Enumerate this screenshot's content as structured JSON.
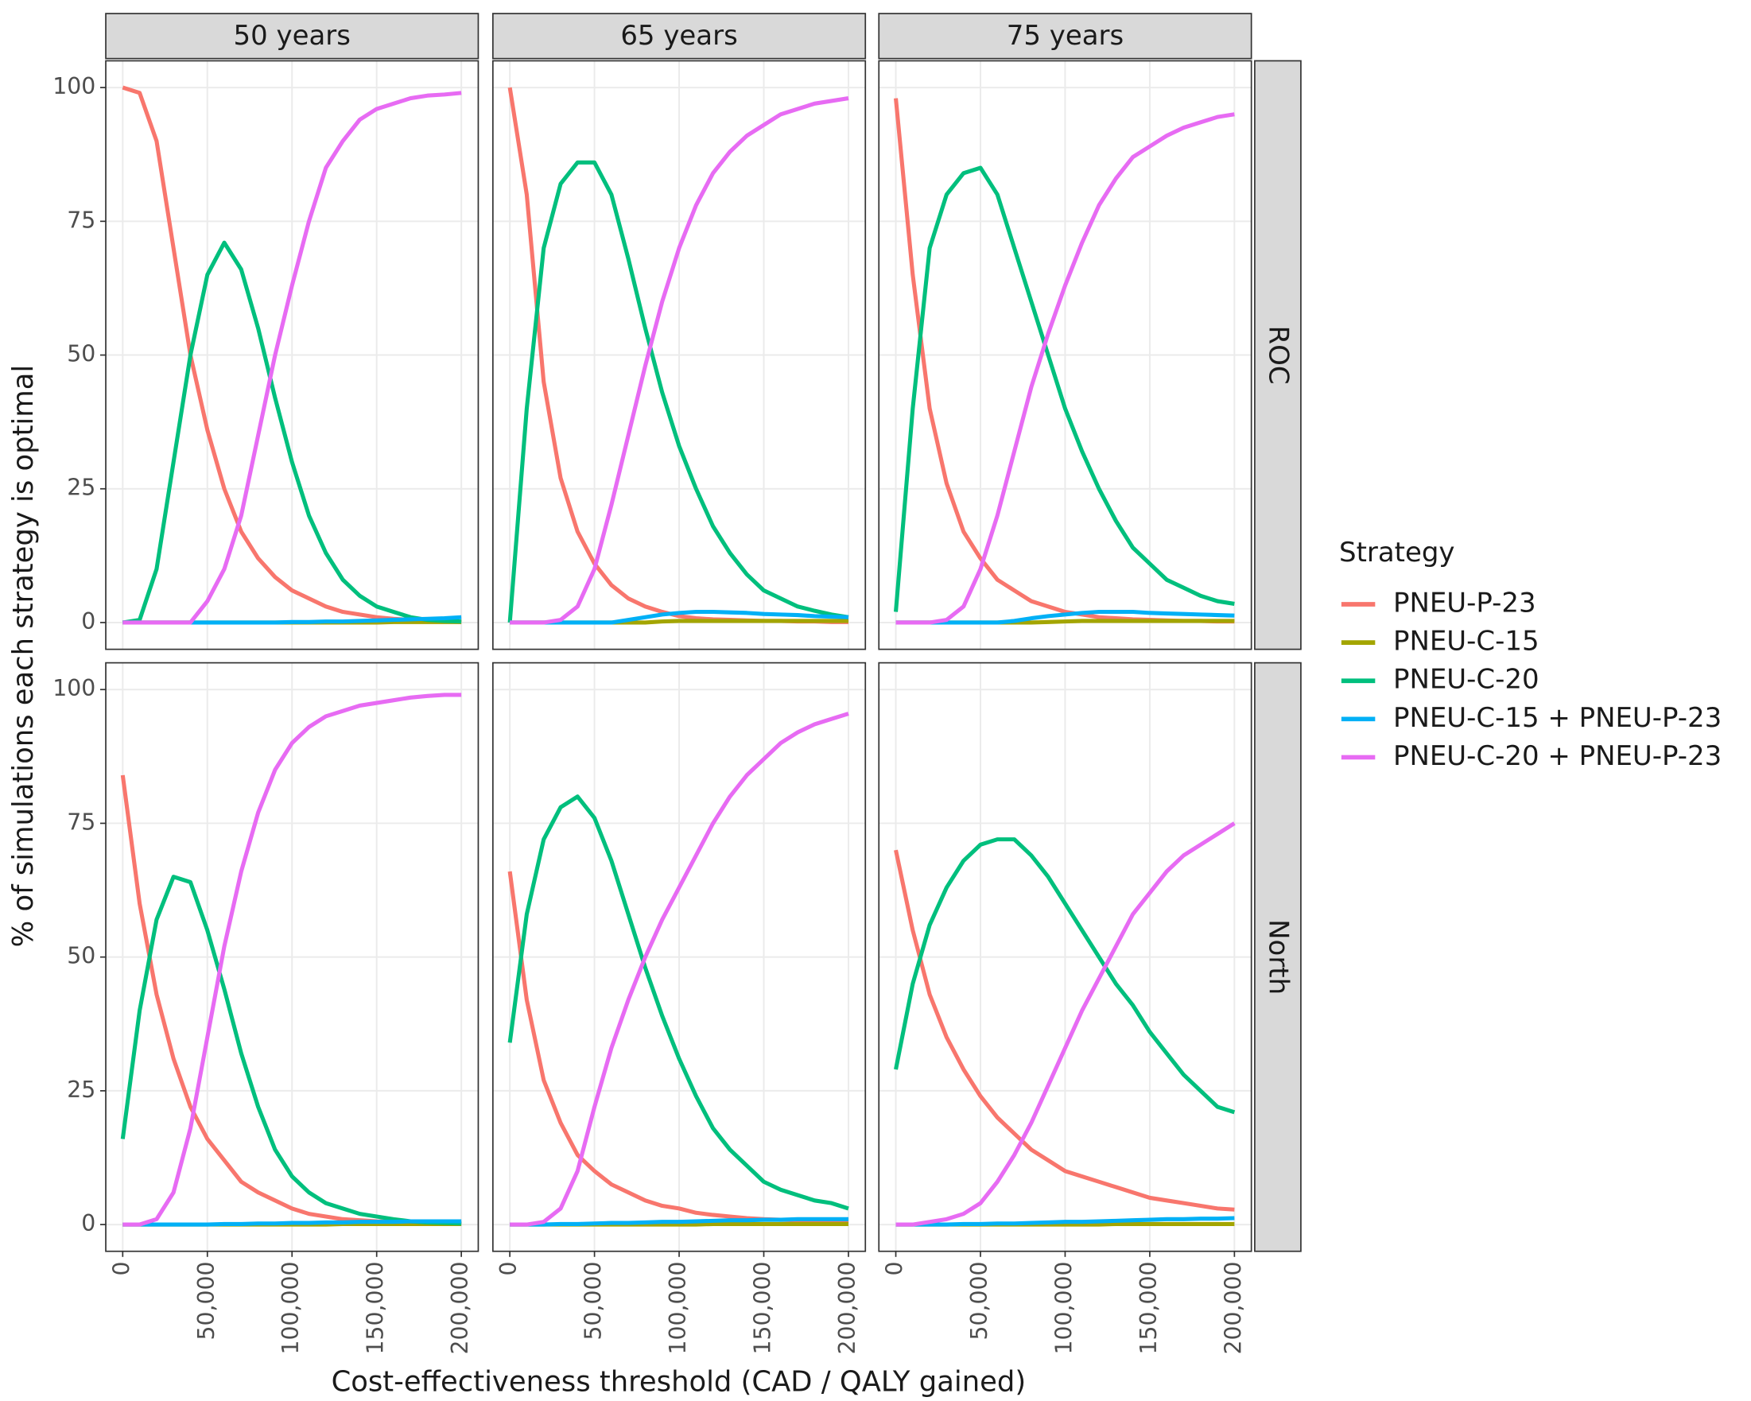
{
  "chart_data": {
    "type": "line",
    "x_label": "Cost-effectiveness threshold (CAD / QALY gained)",
    "y_label": "% of simulations each strategy is optimal",
    "legend_title": "Strategy",
    "columns": [
      "50 years",
      "65 years",
      "75 years"
    ],
    "rows": [
      "ROC",
      "North"
    ],
    "x": [
      0,
      10000,
      20000,
      30000,
      40000,
      50000,
      60000,
      70000,
      80000,
      90000,
      100000,
      110000,
      120000,
      130000,
      140000,
      150000,
      160000,
      170000,
      180000,
      190000,
      200000
    ],
    "xlim": [
      -10000,
      210000
    ],
    "xticks": [
      0,
      {
        "value": 50000,
        "label": "50,000"
      },
      {
        "value": 100000,
        "label": "100,000"
      },
      {
        "value": 150000,
        "label": "150,000"
      },
      {
        "value": 200000,
        "label": "200,000"
      }
    ],
    "ylim": [
      -5,
      105
    ],
    "yticks": [
      0,
      25,
      50,
      75,
      100
    ],
    "grid": true,
    "series": [
      {
        "name": "PNEU-P-23",
        "color": "#F8766D"
      },
      {
        "name": "PNEU-C-15",
        "color": "#A3A500"
      },
      {
        "name": "PNEU-C-20",
        "color": "#00BF7D"
      },
      {
        "name": "PNEU-C-15 + PNEU-P-23",
        "color": "#00B0F6"
      },
      {
        "name": "PNEU-C-20 + PNEU-P-23",
        "color": "#E76BF3"
      }
    ],
    "panels": [
      {
        "series": [
          {
            "values": [
              100,
              99,
              90,
              70,
              50,
              36,
              25,
              17,
              12,
              8.5,
              6,
              4.5,
              3,
              2,
              1.5,
              1,
              0.7,
              0.5,
              0.3,
              0.2,
              0.1
            ]
          },
          {
            "values": [
              0,
              0,
              0,
              0,
              0,
              0,
              0,
              0,
              0,
              0,
              0,
              0,
              0,
              0,
              0,
              0,
              0.1,
              0.1,
              0.1,
              0.1,
              0.1
            ]
          },
          {
            "values": [
              0,
              0.5,
              10,
              30,
              50,
              65,
              71,
              66,
              55,
              42,
              30,
              20,
              13,
              8,
              5,
              3,
              2,
              1,
              0.5,
              0.3,
              0.2
            ]
          },
          {
            "values": [
              0,
              0,
              0,
              0,
              0,
              0,
              0,
              0,
              0,
              0,
              0.1,
              0.1,
              0.2,
              0.2,
              0.3,
              0.4,
              0.5,
              0.6,
              0.7,
              0.8,
              1
            ]
          },
          {
            "values": [
              0,
              0,
              0,
              0,
              0,
              4,
              10,
              20,
              35,
              50,
              63,
              75,
              85,
              90,
              94,
              96,
              97,
              98,
              98.5,
              98.7,
              99
            ]
          }
        ]
      },
      {
        "series": [
          {
            "values": [
              100,
              80,
              45,
              27,
              17,
              11,
              7,
              4.5,
              3,
              2,
              1.2,
              0.8,
              0.6,
              0.5,
              0.4,
              0.3,
              0.3,
              0.2,
              0.2,
              0.1,
              0.1
            ]
          },
          {
            "values": [
              0,
              0,
              0,
              0,
              0,
              0,
              0,
              0,
              0,
              0.2,
              0.3,
              0.3,
              0.3,
              0.3,
              0.3,
              0.3,
              0.3,
              0.3,
              0.3,
              0.3,
              0.3
            ]
          },
          {
            "values": [
              0,
              40,
              70,
              82,
              86,
              86,
              80,
              68,
              55,
              43,
              33,
              25,
              18,
              13,
              9,
              6,
              4.5,
              3,
              2.2,
              1.5,
              1
            ]
          },
          {
            "values": [
              0,
              0,
              0,
              0,
              0,
              0,
              0,
              0.5,
              1,
              1.5,
              1.8,
              2,
              2,
              1.9,
              1.8,
              1.6,
              1.5,
              1.4,
              1.2,
              1.1,
              1
            ]
          },
          {
            "values": [
              0,
              0,
              0,
              0.5,
              3,
              10,
              22,
              35,
              48,
              60,
              70,
              78,
              84,
              88,
              91,
              93,
              95,
              96,
              97,
              97.5,
              98
            ]
          }
        ]
      },
      {
        "series": [
          {
            "values": [
              98,
              65,
              40,
              26,
              17,
              12,
              8,
              6,
              4,
              3,
              2,
              1.5,
              1,
              0.8,
              0.6,
              0.5,
              0.4,
              0.3,
              0.3,
              0.2,
              0.2
            ]
          },
          {
            "values": [
              0,
              0,
              0,
              0,
              0,
              0,
              0,
              0,
              0,
              0.1,
              0.2,
              0.3,
              0.3,
              0.3,
              0.3,
              0.3,
              0.3,
              0.3,
              0.3,
              0.3,
              0.3
            ]
          },
          {
            "values": [
              2,
              40,
              70,
              80,
              84,
              85,
              80,
              70,
              60,
              50,
              40,
              32,
              25,
              19,
              14,
              11,
              8,
              6.5,
              5,
              4,
              3.5
            ]
          },
          {
            "values": [
              0,
              0,
              0,
              0,
              0,
              0,
              0,
              0.3,
              0.8,
              1.2,
              1.5,
              1.8,
              2,
              2,
              2,
              1.8,
              1.7,
              1.6,
              1.5,
              1.4,
              1.3
            ]
          },
          {
            "values": [
              0,
              0,
              0,
              0.5,
              3,
              10,
              20,
              32,
              44,
              54,
              63,
              71,
              78,
              83,
              87,
              89,
              91,
              92.5,
              93.5,
              94.5,
              95
            ]
          }
        ]
      },
      {
        "series": [
          {
            "values": [
              84,
              60,
              43,
              31,
              22,
              16,
              12,
              8,
              6,
              4.5,
              3,
              2,
              1.5,
              1,
              0.8,
              0.6,
              0.5,
              0.4,
              0.3,
              0.2,
              0.2
            ]
          },
          {
            "values": [
              0,
              0,
              0,
              0,
              0,
              0,
              0,
              0,
              0,
              0,
              0,
              0,
              0,
              0.1,
              0.1,
              0.1,
              0.1,
              0.1,
              0.1,
              0.1,
              0.1
            ]
          },
          {
            "values": [
              16,
              40,
              57,
              65,
              64,
              55,
              44,
              32,
              22,
              14,
              9,
              6,
              4,
              3,
              2,
              1.5,
              1,
              0.6,
              0.4,
              0.3,
              0.2
            ]
          },
          {
            "values": [
              0,
              0,
              0,
              0,
              0,
              0,
              0.1,
              0.1,
              0.2,
              0.2,
              0.3,
              0.3,
              0.4,
              0.4,
              0.5,
              0.5,
              0.5,
              0.6,
              0.6,
              0.6,
              0.6
            ]
          },
          {
            "values": [
              0,
              0,
              1,
              6,
              18,
              35,
              52,
              66,
              77,
              85,
              90,
              93,
              95,
              96,
              97,
              97.5,
              98,
              98.5,
              98.8,
              99,
              99
            ]
          }
        ]
      },
      {
        "series": [
          {
            "values": [
              66,
              42,
              27,
              19,
              13,
              10,
              7.5,
              6,
              4.5,
              3.5,
              3,
              2.2,
              1.8,
              1.5,
              1.2,
              1,
              0.9,
              0.8,
              0.7,
              0.6,
              0.6
            ]
          },
          {
            "values": [
              0,
              0,
              0,
              0,
              0,
              0,
              0,
              0,
              0,
              0,
              0,
              0,
              0.1,
              0.1,
              0.1,
              0.1,
              0.1,
              0.1,
              0.1,
              0.1,
              0.1
            ]
          },
          {
            "values": [
              34,
              58,
              72,
              78,
              80,
              76,
              68,
              58,
              48,
              39,
              31,
              24,
              18,
              14,
              11,
              8,
              6.5,
              5.5,
              4.5,
              4,
              3
            ]
          },
          {
            "values": [
              0,
              0,
              0,
              0.1,
              0.1,
              0.2,
              0.3,
              0.3,
              0.4,
              0.5,
              0.5,
              0.6,
              0.7,
              0.8,
              0.8,
              0.9,
              0.9,
              1,
              1,
              1,
              1
            ]
          },
          {
            "values": [
              0,
              0,
              0.5,
              3,
              10,
              22,
              33,
              42,
              50,
              57,
              63,
              69,
              75,
              80,
              84,
              87,
              90,
              92,
              93.5,
              94.5,
              95.5
            ]
          }
        ]
      },
      {
        "series": [
          {
            "values": [
              70,
              55,
              43,
              35,
              29,
              24,
              20,
              17,
              14,
              12,
              10,
              9,
              8,
              7,
              6,
              5,
              4.5,
              4,
              3.5,
              3,
              2.8
            ]
          },
          {
            "values": [
              0,
              0,
              0,
              0,
              0,
              0,
              0,
              0,
              0,
              0,
              0,
              0,
              0,
              0.1,
              0.1,
              0.1,
              0.1,
              0.1,
              0.1,
              0.1,
              0.1
            ]
          },
          {
            "values": [
              29,
              45,
              56,
              63,
              68,
              71,
              72,
              72,
              69,
              65,
              60,
              55,
              50,
              45,
              41,
              36,
              32,
              28,
              25,
              22,
              21
            ]
          },
          {
            "values": [
              0,
              0,
              0,
              0,
              0.1,
              0.1,
              0.2,
              0.2,
              0.3,
              0.4,
              0.5,
              0.5,
              0.6,
              0.7,
              0.8,
              0.9,
              1,
              1,
              1.1,
              1.1,
              1.2
            ]
          },
          {
            "values": [
              0,
              0,
              0.5,
              1,
              2,
              4,
              8,
              13,
              19,
              26,
              33,
              40,
              46,
              52,
              58,
              62,
              66,
              69,
              71,
              73,
              75
            ]
          }
        ]
      }
    ]
  }
}
